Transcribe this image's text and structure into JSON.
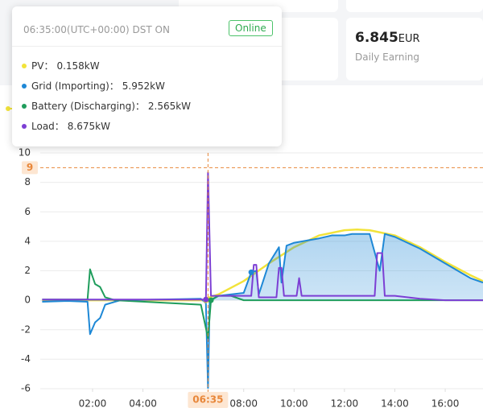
{
  "earning": {
    "value": 6.845,
    "unit": "EUR",
    "label": "Daily Earning"
  },
  "tooltip": {
    "time": "06:35:00(UTC+00:00) DST ON",
    "status": "Online",
    "items": [
      {
        "label": "PV：",
        "value": "0.158kW",
        "color": "#f2e33a"
      },
      {
        "label": "Grid (Importing)：",
        "value": "5.952kW",
        "color": "#1e88d6"
      },
      {
        "label": "Battery (Discharging)：",
        "value": "2.565kW",
        "color": "#1f9d5c"
      },
      {
        "label": "Load：",
        "value": "8.675kW",
        "color": "#7c3fd4"
      }
    ]
  },
  "chart_data": {
    "type": "line",
    "xlim": [
      0,
      17.5
    ],
    "ylim": [
      -6,
      10
    ],
    "xticks": [
      {
        "value": 2,
        "label": "02:00"
      },
      {
        "value": 4,
        "label": "04:00"
      },
      {
        "value": 8,
        "label": "08:00"
      },
      {
        "value": 10,
        "label": "10:00"
      },
      {
        "value": 12,
        "label": "12:00"
      },
      {
        "value": 14,
        "label": "14:00"
      },
      {
        "value": 16,
        "label": "16:00"
      }
    ],
    "yticks": [
      -6,
      -4,
      -2,
      0,
      2,
      4,
      6,
      8,
      10
    ],
    "grid": true,
    "crosshair": {
      "x": {
        "value": 6.583,
        "label": "06:35"
      },
      "y": 9,
      "index": [
        1,
        15,
        9,
        1
      ]
    },
    "series": [
      {
        "name": "PV",
        "color": "#f2e33a",
        "x": [
          0,
          6.5,
          6.583,
          7,
          8,
          9,
          10,
          11,
          12,
          12.5,
          13,
          14,
          15,
          16,
          17,
          17.5
        ],
        "values": [
          0,
          0,
          0.158,
          0.4,
          1.3,
          2.5,
          3.6,
          4.4,
          4.75,
          4.8,
          4.75,
          4.4,
          3.6,
          2.6,
          1.7,
          1.3
        ]
      },
      {
        "name": "Grid",
        "color": "#1e88d6",
        "area": true,
        "x": [
          0,
          1,
          1.8,
          1.9,
          2.1,
          2.3,
          2.5,
          2.9,
          3.1,
          6.3,
          6.5,
          6.583,
          6.65,
          7,
          8,
          8.3,
          8.5,
          8.6,
          9,
          9.4,
          9.5,
          9.7,
          10,
          11,
          11.5,
          12,
          12.3,
          13,
          13.4,
          13.6,
          14,
          15,
          16,
          17,
          17.5
        ],
        "values": [
          -0.1,
          -0.05,
          -0.1,
          -2.3,
          -1.5,
          -1.2,
          -0.3,
          -0.1,
          0,
          0.1,
          -0.2,
          -5.952,
          0,
          0.3,
          0.5,
          1.9,
          2.0,
          0.4,
          2.5,
          3.6,
          1.2,
          3.7,
          3.9,
          4.2,
          4.4,
          4.4,
          4.5,
          4.5,
          2.0,
          4.5,
          4.3,
          3.5,
          2.5,
          1.5,
          1.2
        ]
      },
      {
        "name": "Battery",
        "color": "#1f9d5c",
        "x": [
          0,
          1.8,
          1.9,
          2.1,
          2.3,
          2.5,
          2.9,
          6.3,
          6.583,
          6.7,
          7,
          7.5,
          8,
          17.5
        ],
        "values": [
          0.05,
          0.05,
          2.1,
          1.1,
          0.9,
          0.2,
          0,
          -0.3,
          -2.565,
          0,
          0.3,
          0.3,
          0,
          0
        ]
      },
      {
        "name": "Load",
        "color": "#7c3fd4",
        "x": [
          0,
          6.5,
          6.583,
          6.7,
          8.3,
          8.4,
          8.5,
          8.6,
          9.3,
          9.4,
          9.5,
          9.6,
          10.1,
          10.2,
          10.3,
          13.2,
          13.3,
          13.5,
          13.6,
          14,
          15,
          16,
          17.5
        ],
        "values": [
          0.05,
          0.05,
          8.675,
          0.3,
          0.3,
          2.4,
          2.4,
          0.2,
          0.2,
          2.2,
          2.2,
          0.3,
          0.3,
          1.5,
          0.3,
          0.3,
          3.2,
          3.2,
          0.3,
          0.3,
          0.1,
          0,
          0
        ]
      }
    ]
  }
}
